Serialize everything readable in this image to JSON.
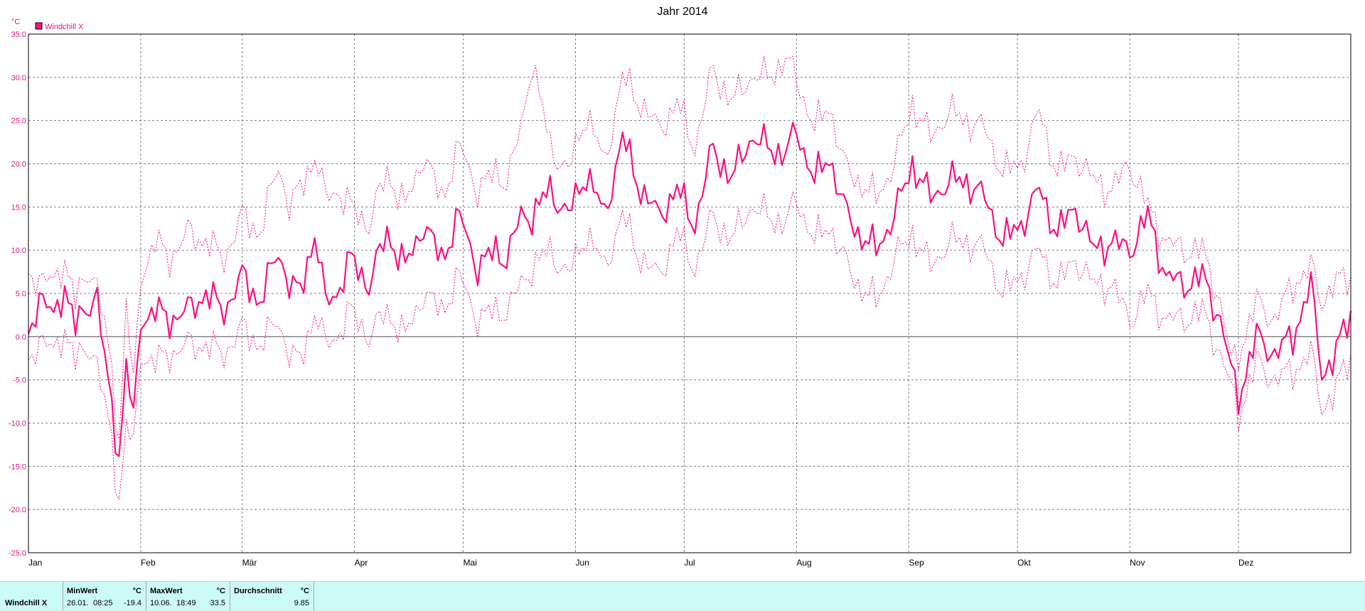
{
  "title": "Jahr 2014",
  "colors": {
    "series": "#ff0f7f",
    "axis_text": "#e0157a",
    "grid": "#808080",
    "stats_bg": "#ccfbf5"
  },
  "legend": {
    "label": "Windchill X"
  },
  "chart_data": {
    "type": "line",
    "title": "Jahr 2014",
    "y_unit": "°C",
    "ylim": [
      -25,
      35
    ],
    "xlim": [
      1,
      366
    ],
    "y_ticks": [
      "35.0",
      "30.0",
      "25.0",
      "20.0",
      "15.0",
      "10.0",
      "5.0",
      "0.0",
      "-5.0",
      "-10.0",
      "-15.0",
      "-20.0",
      "-25.0"
    ],
    "y_tick_values": [
      35,
      30,
      25,
      20,
      15,
      10,
      5,
      0,
      -5,
      -10,
      -15,
      -20,
      -25
    ],
    "x_ticks": [
      {
        "label": "Jan",
        "day": 1
      },
      {
        "label": "Feb",
        "day": 32
      },
      {
        "label": "Mär",
        "day": 60
      },
      {
        "label": "Apr",
        "day": 91
      },
      {
        "label": "Mai",
        "day": 121
      },
      {
        "label": "Jun",
        "day": 152
      },
      {
        "label": "Jul",
        "day": 182
      },
      {
        "label": "Aug",
        "day": 213
      },
      {
        "label": "Sep",
        "day": 244
      },
      {
        "label": "Okt",
        "day": 274
      },
      {
        "label": "Nov",
        "day": 305
      },
      {
        "label": "Dez",
        "day": 335
      }
    ],
    "grid": true,
    "legend_position": "top-left",
    "anchors": {
      "days": [
        1,
        4,
        8,
        11,
        14,
        18,
        20,
        22,
        24,
        26,
        28,
        30,
        32,
        36,
        40,
        45,
        50,
        55,
        60,
        65,
        70,
        73,
        76,
        80,
        83,
        86,
        90,
        95,
        100,
        105,
        110,
        115,
        120,
        125,
        130,
        133,
        137,
        140,
        145,
        150,
        155,
        160,
        165,
        170,
        175,
        180,
        185,
        190,
        195,
        200,
        205,
        210,
        213,
        218,
        222,
        226,
        230,
        235,
        240,
        245,
        250,
        255,
        260,
        265,
        270,
        275,
        280,
        285,
        290,
        295,
        300,
        305,
        310,
        315,
        320,
        325,
        330,
        333,
        335,
        340,
        345,
        350,
        355,
        358,
        361,
        366
      ],
      "avg": [
        0,
        5,
        2,
        6,
        1,
        4,
        5,
        -3,
        -8,
        -14,
        -3,
        -10,
        2,
        3,
        2,
        3,
        5,
        3,
        7,
        4,
        10,
        6,
        5,
        12,
        4,
        5,
        9,
        6,
        12,
        8,
        13,
        9,
        14,
        8,
        10,
        9,
        14,
        14,
        17,
        14,
        19,
        14,
        23,
        17,
        14,
        17,
        13,
        22,
        18,
        23,
        22,
        21,
        24,
        18,
        21,
        15,
        12,
        10,
        14,
        20,
        16,
        18,
        18,
        16,
        11,
        13,
        17,
        12,
        15,
        10,
        11,
        10,
        14,
        7,
        6,
        7,
        2,
        -4,
        -7,
        0,
        -2,
        0,
        6,
        -4,
        -3,
        3
      ],
      "max": [
        7,
        7,
        6,
        9,
        4,
        8,
        6,
        1,
        -4,
        -12,
        4,
        -6,
        7,
        11,
        9,
        12,
        11,
        9,
        14,
        12,
        20,
        15,
        17,
        21,
        16,
        17,
        15,
        13,
        19,
        15,
        21,
        16,
        22,
        17,
        19,
        18,
        24,
        32,
        22,
        19,
        26,
        20,
        30,
        27,
        24,
        27,
        22,
        31,
        27,
        30,
        30,
        32,
        30,
        24,
        27,
        20,
        18,
        16,
        20,
        27,
        23,
        26,
        25,
        24,
        19,
        20,
        26,
        19,
        21,
        18,
        17,
        20,
        15,
        11,
        10,
        10,
        4,
        -3,
        -2,
        4,
        2,
        6,
        8,
        4,
        6,
        7
      ],
      "min": [
        -3,
        0,
        -2,
        1,
        -3,
        -1,
        -3,
        -8,
        -12,
        -19,
        -10,
        -13,
        -2,
        -3,
        -2,
        -1,
        -1,
        -2,
        1,
        -1,
        2,
        -2,
        -3,
        3,
        -1,
        0,
        3,
        0,
        3,
        0,
        5,
        3,
        7,
        2,
        3,
        3,
        6,
        8,
        10,
        7,
        12,
        8,
        14,
        9,
        7,
        12,
        8,
        14,
        11,
        15,
        14,
        13,
        16,
        11,
        13,
        9,
        6,
        4,
        9,
        12,
        8,
        11,
        11,
        10,
        5,
        7,
        10,
        6,
        9,
        6,
        6,
        2,
        5,
        2,
        2,
        3,
        -2,
        -6,
        -9,
        -3,
        -5,
        -4,
        -2,
        -8,
        -7,
        -2
      ]
    },
    "statistics": {
      "series_name": "Windchill X",
      "min": {
        "label": "MinWert",
        "unit": "°C",
        "date": "26.01.",
        "time": "08:25",
        "value": "-19.4"
      },
      "max": {
        "label": "MaxWert",
        "unit": "°C",
        "date": "10.06.",
        "time": "18:49",
        "value": "33.5"
      },
      "avg": {
        "label": "Durchschnitt",
        "unit": "°C",
        "value": "9.85"
      }
    }
  }
}
